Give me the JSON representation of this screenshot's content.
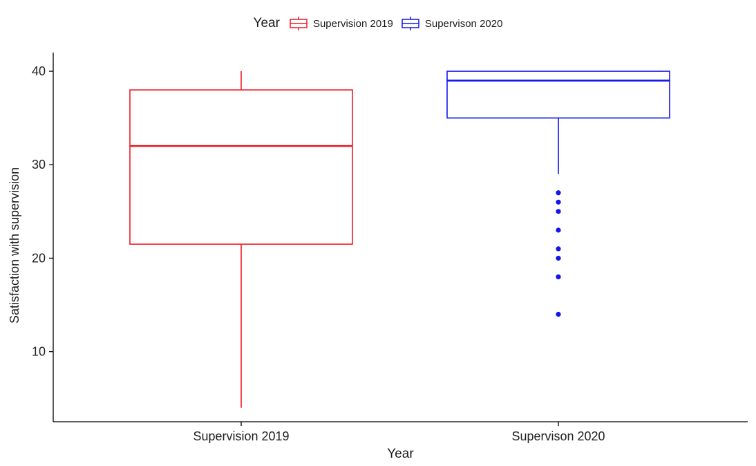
{
  "chart_data": {
    "type": "boxplot",
    "xlabel": "Year",
    "ylabel": "Satisfaction with supervision",
    "ylim": [
      2.5,
      42
    ],
    "yticks": [
      10,
      20,
      30,
      40
    ],
    "categories": [
      "Supervision 2019",
      "Supervison 2020"
    ],
    "grid": false,
    "legend": {
      "title": "Year",
      "position": "top"
    },
    "series": [
      {
        "name": "Supervision 2019",
        "color": "#ee1c25",
        "whisker_low": 4,
        "q1": 21.5,
        "median": 32,
        "q3": 38,
        "whisker_high": 40,
        "outliers": []
      },
      {
        "name": "Supervison 2020",
        "color": "#1414ee",
        "whisker_low": 29,
        "q1": 35,
        "median": 39,
        "q3": 40,
        "whisker_high": 40,
        "outliers": [
          27,
          26,
          25,
          23,
          21,
          20,
          18,
          14
        ]
      }
    ]
  }
}
